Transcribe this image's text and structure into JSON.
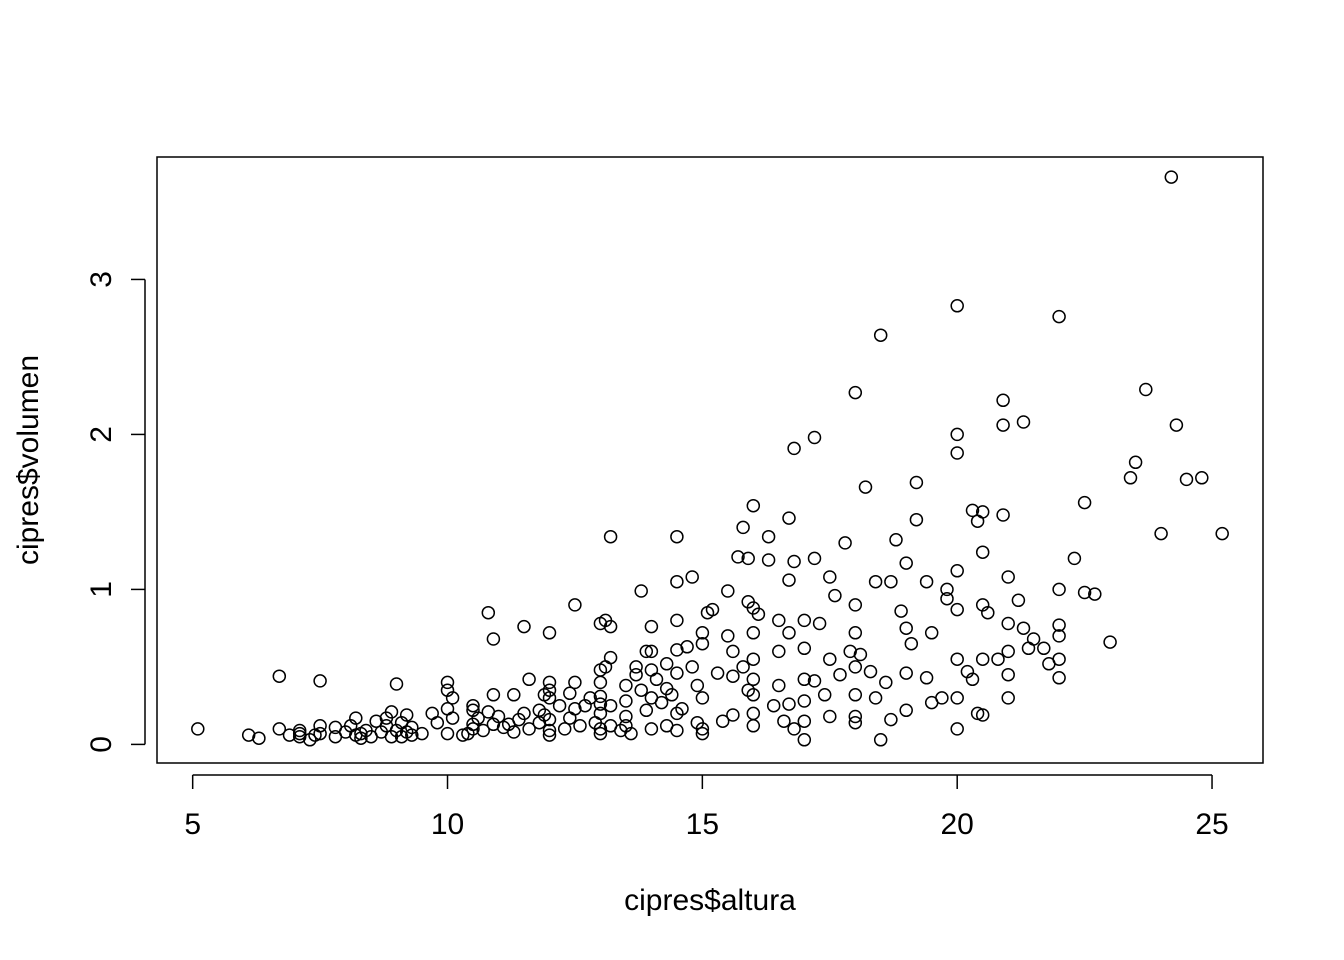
{
  "chart_data": {
    "type": "scatter",
    "title": "",
    "xlabel": "cipres$altura",
    "ylabel": "cipres$volumen",
    "xlim": [
      4.3,
      26.0
    ],
    "ylim": [
      -0.12,
      3.79
    ],
    "x_ticks": [
      5,
      10,
      15,
      20,
      25
    ],
    "y_ticks": [
      0,
      1,
      2,
      3
    ],
    "grid": false,
    "legend": "none",
    "marker": "open-circle",
    "colors": {
      "marker": "#000000",
      "axis": "#000000",
      "background": "#ffffff"
    },
    "points": [
      [
        5.1,
        0.1
      ],
      [
        6.1,
        0.06
      ],
      [
        6.3,
        0.04
      ],
      [
        6.7,
        0.44
      ],
      [
        6.7,
        0.1
      ],
      [
        6.9,
        0.06
      ],
      [
        7.1,
        0.07
      ],
      [
        7.1,
        0.05
      ],
      [
        7.1,
        0.09
      ],
      [
        7.3,
        0.03
      ],
      [
        7.4,
        0.06
      ],
      [
        7.5,
        0.07
      ],
      [
        7.5,
        0.12
      ],
      [
        7.5,
        0.41
      ],
      [
        7.8,
        0.05
      ],
      [
        7.8,
        0.11
      ],
      [
        8.0,
        0.08
      ],
      [
        8.1,
        0.12
      ],
      [
        8.2,
        0.06
      ],
      [
        8.2,
        0.17
      ],
      [
        8.3,
        0.07
      ],
      [
        8.3,
        0.04
      ],
      [
        8.4,
        0.09
      ],
      [
        8.5,
        0.05
      ],
      [
        8.6,
        0.15
      ],
      [
        8.7,
        0.08
      ],
      [
        8.8,
        0.12
      ],
      [
        8.8,
        0.17
      ],
      [
        8.9,
        0.05
      ],
      [
        8.9,
        0.21
      ],
      [
        9.0,
        0.39
      ],
      [
        9.0,
        0.09
      ],
      [
        9.1,
        0.05
      ],
      [
        9.1,
        0.14
      ],
      [
        9.2,
        0.19
      ],
      [
        9.2,
        0.08
      ],
      [
        9.3,
        0.11
      ],
      [
        9.3,
        0.06
      ],
      [
        9.5,
        0.07
      ],
      [
        9.7,
        0.2
      ],
      [
        9.8,
        0.14
      ],
      [
        10.0,
        0.4
      ],
      [
        10.0,
        0.35
      ],
      [
        10.0,
        0.23
      ],
      [
        10.0,
        0.07
      ],
      [
        10.1,
        0.3
      ],
      [
        10.1,
        0.17
      ],
      [
        10.3,
        0.06
      ],
      [
        10.4,
        0.07
      ],
      [
        10.5,
        0.25
      ],
      [
        10.5,
        0.22
      ],
      [
        10.5,
        0.13
      ],
      [
        10.5,
        0.1
      ],
      [
        10.6,
        0.17
      ],
      [
        10.7,
        0.09
      ],
      [
        10.8,
        0.21
      ],
      [
        10.8,
        0.85
      ],
      [
        10.9,
        0.68
      ],
      [
        10.9,
        0.32
      ],
      [
        10.9,
        0.13
      ],
      [
        11.0,
        0.18
      ],
      [
        11.1,
        0.11
      ],
      [
        11.2,
        0.13
      ],
      [
        11.3,
        0.32
      ],
      [
        11.3,
        0.08
      ],
      [
        11.4,
        0.16
      ],
      [
        11.5,
        0.76
      ],
      [
        11.5,
        0.2
      ],
      [
        11.6,
        0.1
      ],
      [
        11.6,
        0.42
      ],
      [
        11.8,
        0.22
      ],
      [
        11.8,
        0.14
      ],
      [
        11.9,
        0.32
      ],
      [
        11.9,
        0.19
      ],
      [
        12.0,
        0.72
      ],
      [
        12.0,
        0.4
      ],
      [
        12.0,
        0.35
      ],
      [
        12.0,
        0.3
      ],
      [
        12.0,
        0.16
      ],
      [
        12.0,
        0.09
      ],
      [
        12.0,
        0.06
      ],
      [
        12.2,
        0.25
      ],
      [
        12.3,
        0.1
      ],
      [
        12.4,
        0.33
      ],
      [
        12.4,
        0.17
      ],
      [
        12.5,
        0.9
      ],
      [
        12.5,
        0.4
      ],
      [
        12.5,
        0.23
      ],
      [
        12.6,
        0.12
      ],
      [
        12.7,
        0.25
      ],
      [
        12.8,
        0.3
      ],
      [
        12.9,
        0.14
      ],
      [
        13.0,
        0.78
      ],
      [
        13.0,
        0.48
      ],
      [
        13.0,
        0.4
      ],
      [
        13.0,
        0.31
      ],
      [
        13.0,
        0.26
      ],
      [
        13.0,
        0.2
      ],
      [
        13.0,
        0.1
      ],
      [
        13.0,
        0.07
      ],
      [
        13.1,
        0.5
      ],
      [
        13.1,
        0.8
      ],
      [
        13.2,
        0.12
      ],
      [
        13.2,
        1.34
      ],
      [
        13.2,
        0.56
      ],
      [
        13.2,
        0.76
      ],
      [
        13.2,
        0.25
      ],
      [
        13.4,
        0.09
      ],
      [
        13.5,
        0.38
      ],
      [
        13.5,
        0.28
      ],
      [
        13.5,
        0.18
      ],
      [
        13.5,
        0.12
      ],
      [
        13.6,
        0.07
      ],
      [
        13.7,
        0.5
      ],
      [
        13.7,
        0.45
      ],
      [
        13.8,
        0.99
      ],
      [
        13.8,
        0.35
      ],
      [
        13.9,
        0.6
      ],
      [
        13.9,
        0.22
      ],
      [
        14.0,
        0.76
      ],
      [
        14.0,
        0.6
      ],
      [
        14.0,
        0.48
      ],
      [
        14.0,
        0.3
      ],
      [
        14.0,
        0.1
      ],
      [
        14.1,
        0.42
      ],
      [
        14.2,
        0.27
      ],
      [
        14.3,
        0.52
      ],
      [
        14.3,
        0.36
      ],
      [
        14.3,
        0.12
      ],
      [
        14.4,
        0.32
      ],
      [
        14.5,
        1.34
      ],
      [
        14.5,
        1.05
      ],
      [
        14.5,
        0.8
      ],
      [
        14.5,
        0.61
      ],
      [
        14.5,
        0.46
      ],
      [
        14.5,
        0.2
      ],
      [
        14.5,
        0.09
      ],
      [
        14.6,
        0.23
      ],
      [
        14.7,
        0.63
      ],
      [
        14.8,
        1.08
      ],
      [
        14.8,
        0.5
      ],
      [
        14.9,
        0.38
      ],
      [
        14.9,
        0.14
      ],
      [
        15.0,
        0.72
      ],
      [
        15.0,
        0.65
      ],
      [
        15.0,
        0.3
      ],
      [
        15.0,
        0.1
      ],
      [
        15.0,
        0.07
      ],
      [
        15.1,
        0.85
      ],
      [
        15.2,
        0.87
      ],
      [
        15.3,
        0.46
      ],
      [
        15.4,
        0.15
      ],
      [
        15.5,
        0.99
      ],
      [
        15.5,
        0.7
      ],
      [
        15.6,
        0.6
      ],
      [
        15.6,
        0.44
      ],
      [
        15.6,
        0.19
      ],
      [
        15.7,
        1.21
      ],
      [
        15.8,
        1.4
      ],
      [
        15.8,
        0.5
      ],
      [
        15.9,
        1.2
      ],
      [
        15.9,
        0.92
      ],
      [
        15.9,
        0.35
      ],
      [
        16.0,
        1.54
      ],
      [
        16.0,
        0.88
      ],
      [
        16.0,
        0.72
      ],
      [
        16.0,
        0.55
      ],
      [
        16.0,
        0.42
      ],
      [
        16.0,
        0.32
      ],
      [
        16.0,
        0.2
      ],
      [
        16.0,
        0.12
      ],
      [
        16.1,
        0.84
      ],
      [
        16.3,
        1.34
      ],
      [
        16.3,
        1.19
      ],
      [
        16.4,
        0.25
      ],
      [
        16.5,
        0.8
      ],
      [
        16.5,
        0.6
      ],
      [
        16.5,
        0.38
      ],
      [
        16.6,
        0.15
      ],
      [
        16.7,
        1.46
      ],
      [
        16.7,
        1.06
      ],
      [
        16.7,
        0.72
      ],
      [
        16.7,
        0.26
      ],
      [
        16.8,
        1.91
      ],
      [
        16.8,
        1.18
      ],
      [
        16.8,
        0.1
      ],
      [
        17.0,
        0.8
      ],
      [
        17.0,
        0.62
      ],
      [
        17.0,
        0.42
      ],
      [
        17.0,
        0.28
      ],
      [
        17.0,
        0.15
      ],
      [
        17.0,
        0.03
      ],
      [
        17.2,
        1.98
      ],
      [
        17.2,
        1.2
      ],
      [
        17.2,
        0.41
      ],
      [
        17.3,
        0.78
      ],
      [
        17.4,
        0.32
      ],
      [
        17.5,
        1.08
      ],
      [
        17.5,
        0.55
      ],
      [
        17.5,
        0.18
      ],
      [
        17.6,
        0.96
      ],
      [
        17.7,
        0.45
      ],
      [
        17.8,
        1.3
      ],
      [
        17.9,
        0.6
      ],
      [
        18.0,
        2.27
      ],
      [
        18.0,
        0.9
      ],
      [
        18.0,
        0.72
      ],
      [
        18.0,
        0.5
      ],
      [
        18.0,
        0.32
      ],
      [
        18.0,
        0.18
      ],
      [
        18.0,
        0.14
      ],
      [
        18.1,
        0.58
      ],
      [
        18.2,
        1.66
      ],
      [
        18.3,
        0.47
      ],
      [
        18.4,
        1.05
      ],
      [
        18.4,
        0.3
      ],
      [
        18.5,
        2.64
      ],
      [
        18.5,
        0.03
      ],
      [
        18.6,
        0.4
      ],
      [
        18.7,
        1.05
      ],
      [
        18.7,
        0.16
      ],
      [
        18.8,
        1.32
      ],
      [
        18.9,
        0.86
      ],
      [
        19.0,
        1.17
      ],
      [
        19.0,
        0.75
      ],
      [
        19.0,
        0.46
      ],
      [
        19.0,
        0.22
      ],
      [
        19.1,
        0.65
      ],
      [
        19.2,
        1.69
      ],
      [
        19.2,
        1.45
      ],
      [
        19.4,
        1.05
      ],
      [
        19.4,
        0.43
      ],
      [
        19.5,
        0.72
      ],
      [
        19.5,
        0.27
      ],
      [
        19.7,
        0.3
      ],
      [
        19.8,
        1.0
      ],
      [
        19.8,
        0.94
      ],
      [
        20.0,
        2.83
      ],
      [
        20.0,
        2.0
      ],
      [
        20.0,
        1.88
      ],
      [
        20.0,
        1.12
      ],
      [
        20.0,
        0.87
      ],
      [
        20.0,
        0.55
      ],
      [
        20.0,
        0.3
      ],
      [
        20.0,
        0.1
      ],
      [
        20.2,
        0.47
      ],
      [
        20.3,
        1.51
      ],
      [
        20.3,
        0.42
      ],
      [
        20.4,
        1.44
      ],
      [
        20.4,
        0.2
      ],
      [
        20.5,
        1.5
      ],
      [
        20.5,
        1.24
      ],
      [
        20.5,
        0.9
      ],
      [
        20.5,
        0.55
      ],
      [
        20.5,
        0.19
      ],
      [
        20.6,
        0.85
      ],
      [
        20.8,
        0.55
      ],
      [
        20.9,
        2.22
      ],
      [
        20.9,
        2.06
      ],
      [
        20.9,
        1.48
      ],
      [
        21.0,
        1.08
      ],
      [
        21.0,
        0.78
      ],
      [
        21.0,
        0.6
      ],
      [
        21.0,
        0.45
      ],
      [
        21.0,
        0.3
      ],
      [
        21.2,
        0.93
      ],
      [
        21.3,
        2.08
      ],
      [
        21.3,
        0.75
      ],
      [
        21.4,
        0.62
      ],
      [
        21.5,
        0.68
      ],
      [
        21.7,
        0.62
      ],
      [
        21.8,
        0.52
      ],
      [
        22.0,
        2.76
      ],
      [
        22.0,
        1.0
      ],
      [
        22.0,
        0.77
      ],
      [
        22.0,
        0.7
      ],
      [
        22.0,
        0.55
      ],
      [
        22.0,
        0.43
      ],
      [
        22.3,
        1.2
      ],
      [
        22.5,
        1.56
      ],
      [
        22.5,
        0.98
      ],
      [
        22.7,
        0.97
      ],
      [
        23.0,
        0.66
      ],
      [
        23.4,
        1.72
      ],
      [
        23.5,
        1.82
      ],
      [
        23.7,
        2.29
      ],
      [
        24.0,
        1.36
      ],
      [
        24.2,
        3.66
      ],
      [
        24.3,
        2.06
      ],
      [
        24.5,
        1.71
      ],
      [
        24.8,
        1.72
      ],
      [
        25.2,
        1.36
      ]
    ]
  }
}
